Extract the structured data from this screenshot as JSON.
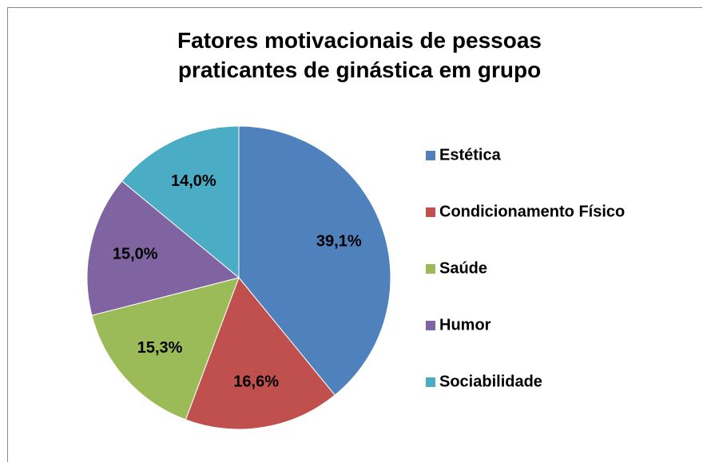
{
  "chart_data": {
    "type": "pie",
    "title": "Fatores motivacionais de pessoas praticantes de ginástica em grupo",
    "categories": [
      "Estética",
      "Condicionamento Físico",
      "Saúde",
      "Humor",
      "Sociabilidade"
    ],
    "values": [
      39.1,
      16.6,
      15.3,
      15.0,
      14.0
    ],
    "value_labels": [
      "39,1%",
      "16,6%",
      "15,3%",
      "15,0%",
      "14,0%"
    ],
    "colors": [
      "#4f81bd",
      "#c0504d",
      "#9bbb59",
      "#8064a2",
      "#4bacc6"
    ],
    "legend": "right"
  }
}
